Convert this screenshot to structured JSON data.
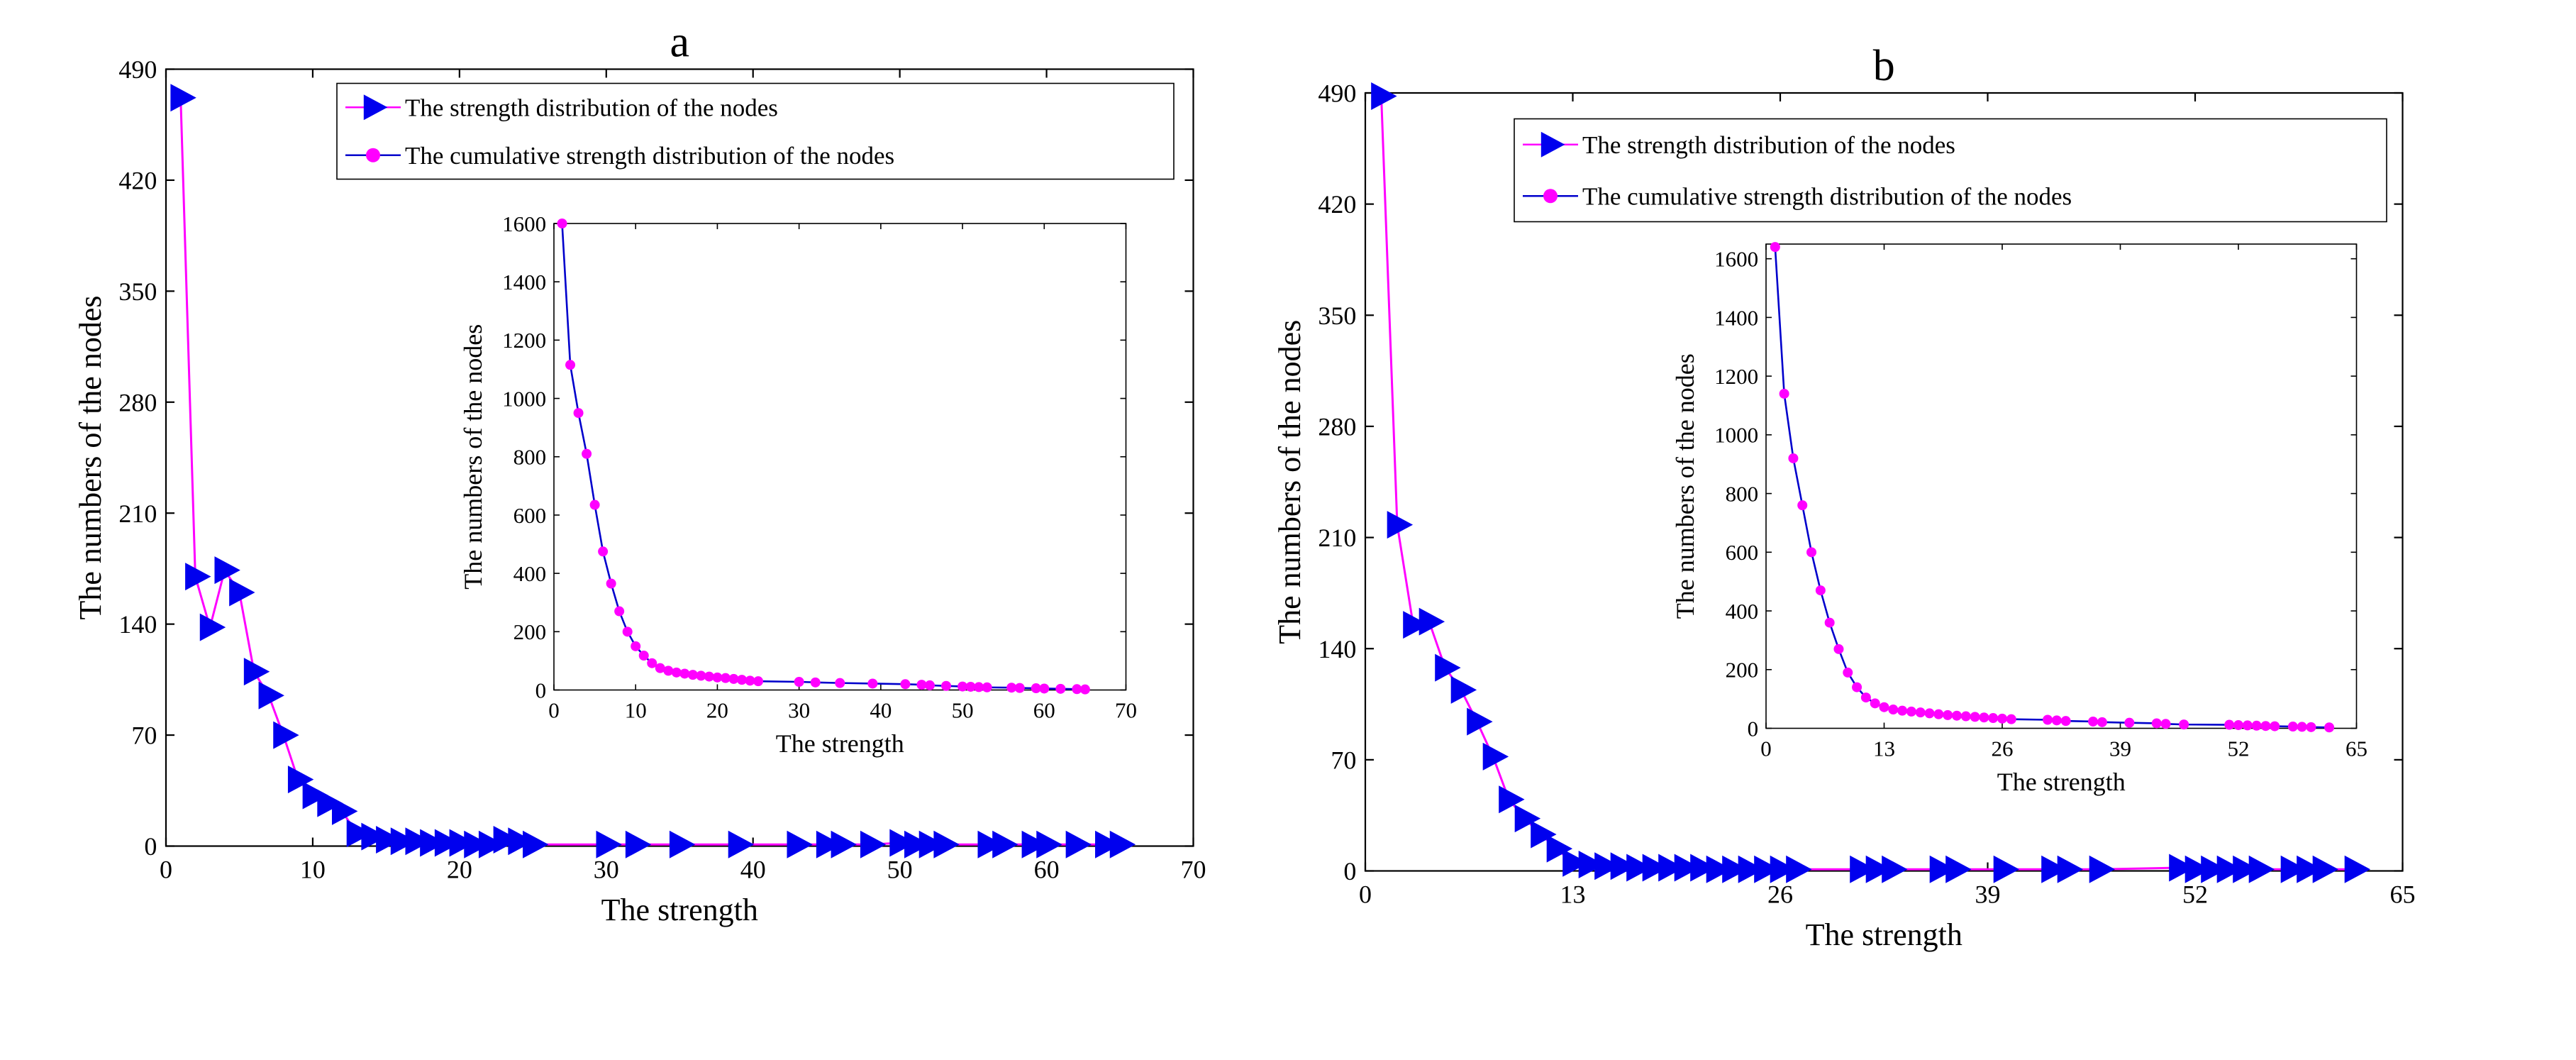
{
  "chart_data": [
    {
      "id": "a",
      "panel_label": "a",
      "type": "line",
      "xlabel": "The strength",
      "ylabel": "The numbers of the nodes",
      "xlim": [
        0,
        70
      ],
      "ylim": [
        0,
        490
      ],
      "xticks": [
        0,
        10,
        20,
        30,
        40,
        50,
        60,
        70
      ],
      "yticks": [
        0,
        70,
        140,
        210,
        280,
        350,
        420,
        490
      ],
      "legend_position": "top-right",
      "series": [
        {
          "name": "The strength distribution of the nodes",
          "line_color": "#ff00ff",
          "marker": "triangle-right",
          "marker_color": "#0000ee",
          "x": [
            1,
            2,
            3,
            4,
            5,
            6,
            7,
            8,
            9,
            10,
            11,
            12,
            13,
            14,
            15,
            16,
            17,
            18,
            19,
            20,
            21,
            22,
            23,
            24,
            25,
            30,
            32,
            35,
            39,
            43,
            45,
            46,
            48,
            50,
            51,
            52,
            53,
            56,
            57,
            59,
            60,
            62,
            64,
            65
          ],
          "y": [
            472,
            170,
            138,
            174,
            160,
            110,
            95,
            70,
            42,
            32,
            27,
            22,
            8,
            6,
            4,
            3,
            3,
            2,
            2,
            2,
            1,
            1,
            4,
            3,
            1,
            1,
            1,
            1,
            1,
            1,
            1,
            1,
            1,
            2,
            1,
            1,
            1,
            1,
            1,
            1,
            1,
            1,
            1,
            1
          ]
        }
      ],
      "inset": {
        "type": "line",
        "xlabel": "The strength",
        "ylabel": "The numbers of the nodes",
        "xlim": [
          0,
          70
        ],
        "ylim": [
          0,
          1600
        ],
        "xticks": [
          0,
          10,
          20,
          30,
          40,
          50,
          60,
          70
        ],
        "yticks": [
          0,
          200,
          400,
          600,
          800,
          1000,
          1200,
          1400,
          1600
        ],
        "series": [
          {
            "name": "The cumulative strength distribution of the nodes",
            "line_color": "#0000cc",
            "marker": "circle",
            "marker_color": "#ff00ff",
            "x": [
              1,
              2,
              3,
              4,
              5,
              6,
              7,
              8,
              9,
              10,
              11,
              12,
              13,
              14,
              15,
              16,
              17,
              18,
              19,
              20,
              21,
              22,
              23,
              24,
              25,
              30,
              32,
              35,
              39,
              43,
              45,
              46,
              48,
              50,
              51,
              52,
              53,
              56,
              57,
              59,
              60,
              62,
              64,
              65
            ],
            "y": [
              1600,
              1115,
              950,
              810,
              635,
              475,
              365,
              270,
              200,
              150,
              118,
              92,
              75,
              66,
              60,
              56,
              52,
              49,
              46,
              43,
              41,
              38,
              35,
              32,
              30,
              28,
              26,
              24,
              22,
              20,
              18,
              16,
              14,
              12,
              11,
              10,
              9,
              8,
              7,
              6,
              5,
              4,
              3,
              2
            ]
          }
        ]
      }
    },
    {
      "id": "b",
      "panel_label": "b",
      "type": "line",
      "xlabel": "The strength",
      "ylabel": "The numbers of the nodes",
      "xlim": [
        0,
        65
      ],
      "ylim": [
        0,
        490
      ],
      "xticks": [
        0,
        13,
        26,
        39,
        52,
        65
      ],
      "yticks": [
        0,
        70,
        140,
        210,
        280,
        350,
        420,
        490
      ],
      "legend_position": "top-right",
      "series": [
        {
          "name": "The strength distribution of the nodes",
          "line_color": "#ff00ff",
          "marker": "triangle-right",
          "marker_color": "#0000ee",
          "x": [
            1,
            2,
            3,
            4,
            5,
            6,
            7,
            8,
            9,
            10,
            11,
            12,
            13,
            14,
            15,
            16,
            17,
            18,
            19,
            20,
            21,
            22,
            23,
            24,
            25,
            26,
            27,
            31,
            32,
            33,
            36,
            37,
            40,
            43,
            44,
            46,
            51,
            52,
            53,
            54,
            55,
            56,
            58,
            59,
            60,
            62
          ],
          "y": [
            488,
            218,
            155,
            157,
            128,
            114,
            94,
            72,
            45,
            33,
            23,
            14,
            5,
            4,
            3,
            3,
            2,
            2,
            2,
            2,
            2,
            1,
            1,
            1,
            1,
            1,
            1,
            1,
            1,
            1,
            1,
            1,
            1,
            1,
            1,
            1,
            2,
            1,
            1,
            1,
            1,
            1,
            1,
            1,
            1,
            1
          ]
        }
      ],
      "inset": {
        "type": "line",
        "xlabel": "The strength",
        "ylabel": "The numbers of the nodes",
        "xlim": [
          0,
          65
        ],
        "ylim": [
          0,
          1650
        ],
        "xticks": [
          0,
          13,
          26,
          39,
          52,
          65
        ],
        "yticks": [
          0,
          200,
          400,
          600,
          800,
          1000,
          1200,
          1400,
          1600
        ],
        "series": [
          {
            "name": "The cumulative strength distribution of the nodes",
            "line_color": "#0000cc",
            "marker": "circle",
            "marker_color": "#ff00ff",
            "x": [
              1,
              2,
              3,
              4,
              5,
              6,
              7,
              8,
              9,
              10,
              11,
              12,
              13,
              14,
              15,
              16,
              17,
              18,
              19,
              20,
              21,
              22,
              23,
              24,
              25,
              26,
              27,
              31,
              32,
              33,
              36,
              37,
              40,
              43,
              44,
              46,
              51,
              52,
              53,
              54,
              55,
              56,
              58,
              59,
              60,
              62
            ],
            "y": [
              1640,
              1140,
              920,
              760,
              600,
              470,
              360,
              270,
              190,
              140,
              105,
              85,
              72,
              64,
              60,
              57,
              54,
              51,
              48,
              45,
              43,
              41,
              39,
              37,
              35,
              33,
              31,
              29,
              27,
              25,
              23,
              21,
              19,
              17,
              15,
              13,
              12,
              11,
              10,
              9,
              8,
              7,
              6,
              5,
              4,
              3
            ]
          }
        ]
      }
    }
  ]
}
